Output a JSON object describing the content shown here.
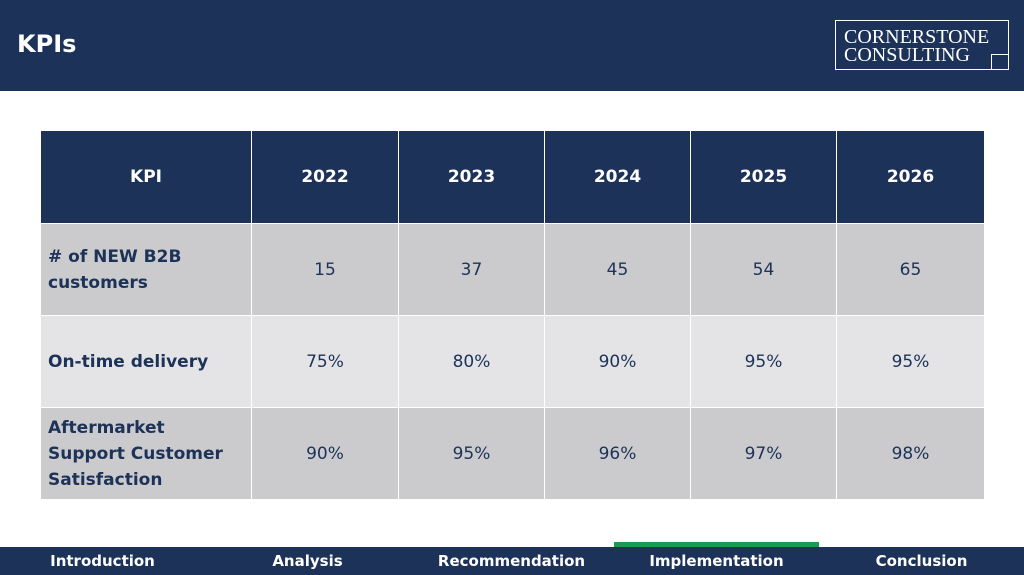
{
  "header": {
    "title": "KPIs",
    "logo": {
      "line1": "CORNERSTONE",
      "line2": "CONSULTING"
    }
  },
  "table": {
    "columns": [
      "KPI",
      "2022",
      "2023",
      "2024",
      "2025",
      "2026"
    ],
    "rows": [
      {
        "label": "# of NEW B2B customers",
        "values": [
          "15",
          "37",
          "45",
          "54",
          "65"
        ]
      },
      {
        "label": "On-time delivery",
        "values": [
          "75%",
          "80%",
          "90%",
          "95%",
          "95%"
        ]
      },
      {
        "label": "Aftermarket Support Customer Satisfaction",
        "values": [
          "90%",
          "95%",
          "96%",
          "97%",
          "98%"
        ]
      }
    ]
  },
  "nav": {
    "items": [
      "Introduction",
      "Analysis",
      "Recommendation",
      "Implementation",
      "Conclusion"
    ],
    "active_index": 3,
    "active_color": "#1a9a52"
  },
  "colors": {
    "primary": "#1d3258",
    "row_dark": "#cbcbcd",
    "row_light": "#e4e4e6"
  }
}
